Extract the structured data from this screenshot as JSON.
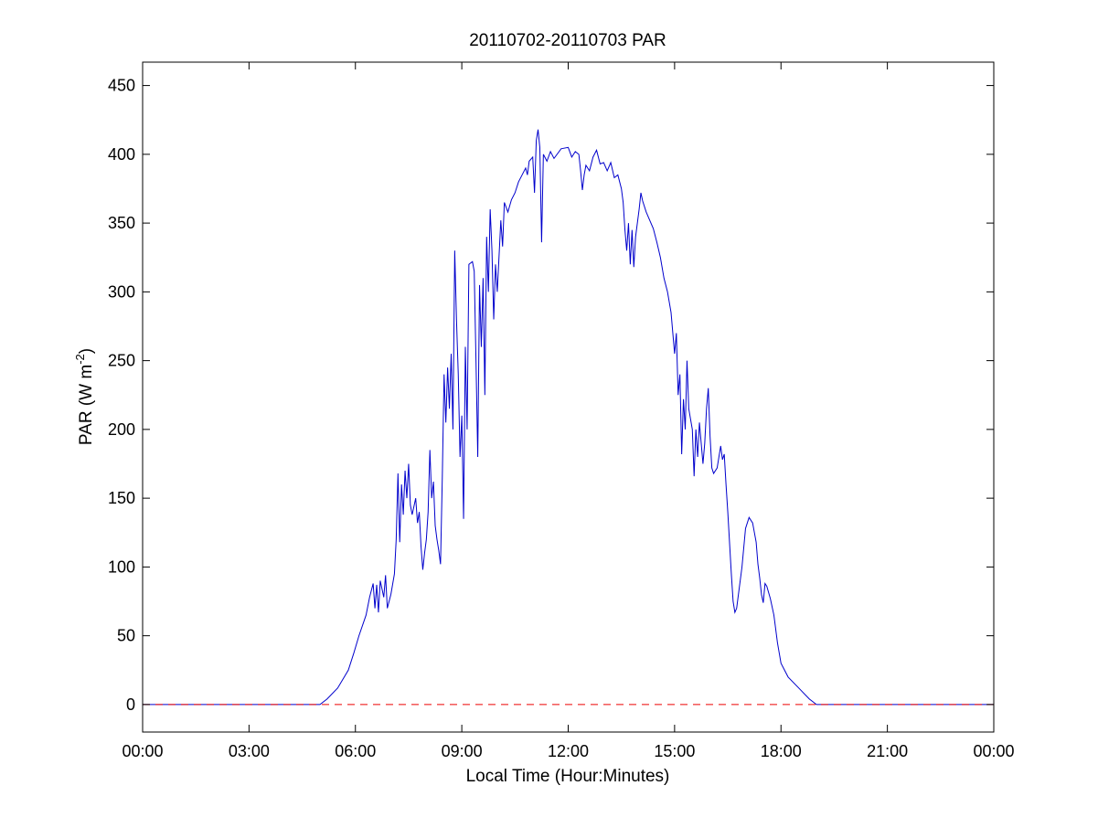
{
  "chart_data": {
    "type": "line",
    "title": "20110702-20110703 PAR",
    "xlabel": "Local Time (Hour:Minutes)",
    "ylabel_main": "PAR (W m",
    "ylabel_exp": "-2",
    "ylabel_close": ")",
    "xlim": [
      0,
      24
    ],
    "ylim": [
      -20,
      467
    ],
    "x_ticks": [
      0,
      3,
      6,
      9,
      12,
      15,
      18,
      21,
      24
    ],
    "x_tick_labels": [
      "00:00",
      "03:00",
      "06:00",
      "09:00",
      "12:00",
      "15:00",
      "18:00",
      "21:00",
      "00:00"
    ],
    "y_ticks": [
      0,
      50,
      100,
      150,
      200,
      250,
      300,
      350,
      400,
      450
    ],
    "y_tick_labels": [
      "0",
      "50",
      "100",
      "150",
      "200",
      "250",
      "300",
      "350",
      "400",
      "450"
    ],
    "grid": false,
    "series": [
      {
        "color": "#0000cc",
        "style": "solid",
        "points": [
          [
            0.0,
            0
          ],
          [
            4.8,
            0
          ],
          [
            5.0,
            0
          ],
          [
            5.2,
            4
          ],
          [
            5.5,
            12
          ],
          [
            5.8,
            25
          ],
          [
            5.95,
            37
          ],
          [
            6.1,
            50
          ],
          [
            6.3,
            65
          ],
          [
            6.4,
            78
          ],
          [
            6.5,
            88
          ],
          [
            6.55,
            70
          ],
          [
            6.6,
            87
          ],
          [
            6.65,
            67
          ],
          [
            6.7,
            90
          ],
          [
            6.8,
            78
          ],
          [
            6.85,
            94
          ],
          [
            6.9,
            70
          ],
          [
            7.0,
            80
          ],
          [
            7.1,
            95
          ],
          [
            7.15,
            120
          ],
          [
            7.2,
            168
          ],
          [
            7.25,
            118
          ],
          [
            7.3,
            160
          ],
          [
            7.35,
            138
          ],
          [
            7.4,
            170
          ],
          [
            7.45,
            150
          ],
          [
            7.5,
            175
          ],
          [
            7.55,
            145
          ],
          [
            7.6,
            138
          ],
          [
            7.7,
            150
          ],
          [
            7.75,
            132
          ],
          [
            7.8,
            140
          ],
          [
            7.85,
            115
          ],
          [
            7.9,
            98
          ],
          [
            7.95,
            110
          ],
          [
            8.0,
            120
          ],
          [
            8.05,
            140
          ],
          [
            8.1,
            185
          ],
          [
            8.15,
            150
          ],
          [
            8.2,
            162
          ],
          [
            8.25,
            130
          ],
          [
            8.3,
            120
          ],
          [
            8.35,
            112
          ],
          [
            8.4,
            102
          ],
          [
            8.45,
            165
          ],
          [
            8.5,
            240
          ],
          [
            8.55,
            205
          ],
          [
            8.6,
            245
          ],
          [
            8.65,
            215
          ],
          [
            8.7,
            255
          ],
          [
            8.75,
            200
          ],
          [
            8.8,
            330
          ],
          [
            8.85,
            280
          ],
          [
            8.9,
            240
          ],
          [
            8.95,
            180
          ],
          [
            9.0,
            210
          ],
          [
            9.05,
            135
          ],
          [
            9.1,
            260
          ],
          [
            9.15,
            200
          ],
          [
            9.2,
            320
          ],
          [
            9.3,
            322
          ],
          [
            9.35,
            315
          ],
          [
            9.4,
            250
          ],
          [
            9.45,
            180
          ],
          [
            9.5,
            305
          ],
          [
            9.55,
            260
          ],
          [
            9.6,
            310
          ],
          [
            9.65,
            225
          ],
          [
            9.7,
            340
          ],
          [
            9.75,
            300
          ],
          [
            9.8,
            360
          ],
          [
            9.85,
            330
          ],
          [
            9.9,
            280
          ],
          [
            9.95,
            320
          ],
          [
            10.0,
            300
          ],
          [
            10.1,
            352
          ],
          [
            10.15,
            333
          ],
          [
            10.2,
            365
          ],
          [
            10.3,
            358
          ],
          [
            10.4,
            367
          ],
          [
            10.5,
            372
          ],
          [
            10.6,
            380
          ],
          [
            10.7,
            385
          ],
          [
            10.8,
            390
          ],
          [
            10.85,
            385
          ],
          [
            10.9,
            395
          ],
          [
            11.0,
            398
          ],
          [
            11.05,
            372
          ],
          [
            11.1,
            410
          ],
          [
            11.15,
            418
          ],
          [
            11.2,
            405
          ],
          [
            11.25,
            336
          ],
          [
            11.3,
            400
          ],
          [
            11.4,
            395
          ],
          [
            11.5,
            402
          ],
          [
            11.6,
            397
          ],
          [
            11.8,
            404
          ],
          [
            12.0,
            405
          ],
          [
            12.1,
            398
          ],
          [
            12.2,
            402
          ],
          [
            12.3,
            400
          ],
          [
            12.35,
            388
          ],
          [
            12.4,
            374
          ],
          [
            12.45,
            385
          ],
          [
            12.5,
            392
          ],
          [
            12.6,
            388
          ],
          [
            12.7,
            398
          ],
          [
            12.8,
            403
          ],
          [
            12.9,
            393
          ],
          [
            13.0,
            394
          ],
          [
            13.1,
            388
          ],
          [
            13.2,
            394
          ],
          [
            13.3,
            383
          ],
          [
            13.4,
            385
          ],
          [
            13.5,
            375
          ],
          [
            13.55,
            365
          ],
          [
            13.6,
            345
          ],
          [
            13.65,
            330
          ],
          [
            13.7,
            350
          ],
          [
            13.75,
            320
          ],
          [
            13.8,
            345
          ],
          [
            13.85,
            318
          ],
          [
            13.9,
            340
          ],
          [
            14.0,
            360
          ],
          [
            14.05,
            372
          ],
          [
            14.1,
            366
          ],
          [
            14.2,
            358
          ],
          [
            14.4,
            346
          ],
          [
            14.5,
            336
          ],
          [
            14.6,
            325
          ],
          [
            14.7,
            310
          ],
          [
            14.8,
            300
          ],
          [
            14.9,
            285
          ],
          [
            15.0,
            255
          ],
          [
            15.05,
            270
          ],
          [
            15.1,
            225
          ],
          [
            15.15,
            240
          ],
          [
            15.2,
            182
          ],
          [
            15.25,
            222
          ],
          [
            15.3,
            200
          ],
          [
            15.35,
            250
          ],
          [
            15.4,
            215
          ],
          [
            15.5,
            200
          ],
          [
            15.55,
            166
          ],
          [
            15.6,
            200
          ],
          [
            15.65,
            180
          ],
          [
            15.7,
            205
          ],
          [
            15.8,
            175
          ],
          [
            15.85,
            190
          ],
          [
            15.9,
            215
          ],
          [
            15.95,
            230
          ],
          [
            16.0,
            195
          ],
          [
            16.05,
            172
          ],
          [
            16.1,
            168
          ],
          [
            16.2,
            172
          ],
          [
            16.3,
            188
          ],
          [
            16.35,
            178
          ],
          [
            16.4,
            182
          ],
          [
            16.45,
            160
          ],
          [
            16.5,
            140
          ],
          [
            16.6,
            95
          ],
          [
            16.65,
            75
          ],
          [
            16.7,
            67
          ],
          [
            16.75,
            70
          ],
          [
            16.8,
            80
          ],
          [
            16.9,
            100
          ],
          [
            17.0,
            128
          ],
          [
            17.1,
            136
          ],
          [
            17.2,
            132
          ],
          [
            17.3,
            118
          ],
          [
            17.35,
            102
          ],
          [
            17.4,
            92
          ],
          [
            17.45,
            80
          ],
          [
            17.5,
            74
          ],
          [
            17.55,
            88
          ],
          [
            17.6,
            86
          ],
          [
            17.7,
            77
          ],
          [
            17.8,
            65
          ],
          [
            17.9,
            45
          ],
          [
            18.0,
            30
          ],
          [
            18.2,
            20
          ],
          [
            18.5,
            12
          ],
          [
            18.8,
            4
          ],
          [
            19.0,
            0
          ],
          [
            19.3,
            0
          ],
          [
            24.0,
            0
          ]
        ]
      },
      {
        "color": "#ee0000",
        "style": "dashed",
        "points": [
          [
            0,
            0
          ],
          [
            24,
            0
          ]
        ]
      }
    ]
  }
}
